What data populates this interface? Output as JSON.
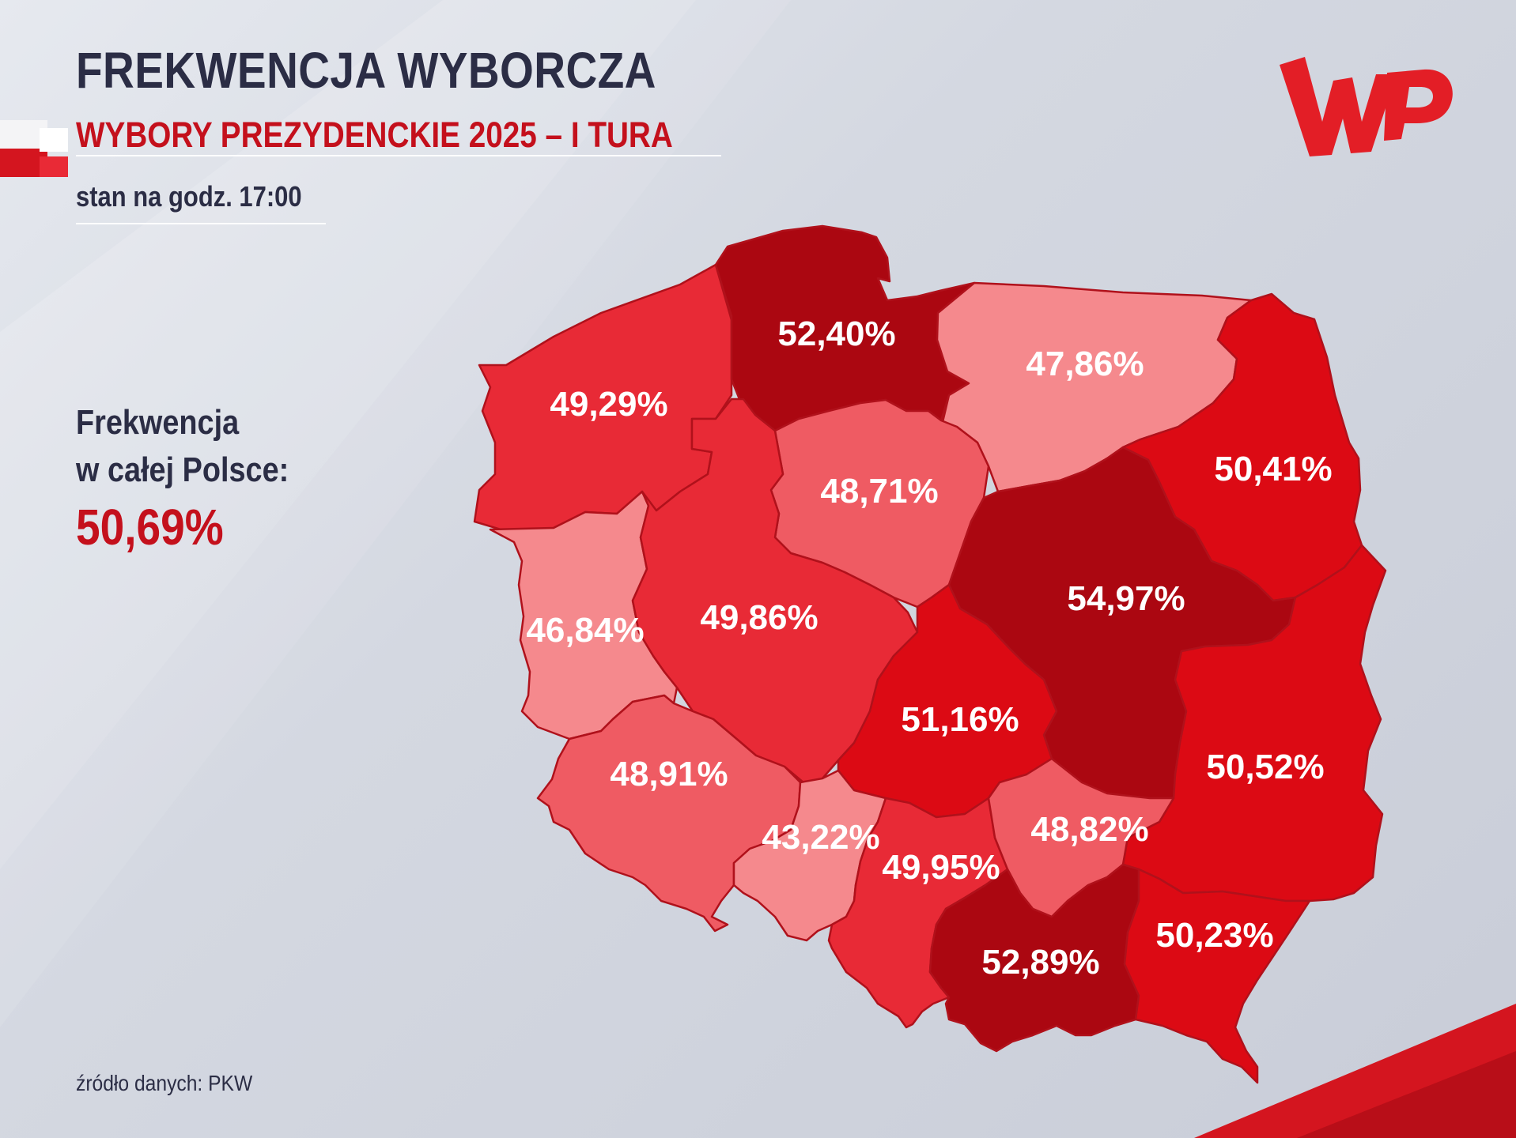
{
  "header": {
    "title": "FREKWENCJA WYBORCZA",
    "subtitle": "WYBORY PREZYDENCKIE 2025 – I TURA",
    "timestamp": "stan na godz. 17:00"
  },
  "national": {
    "label_line1": "Frekwencja",
    "label_line2": "w całej Polsce:",
    "value": "50,69%"
  },
  "source": "źródło danych: PKW",
  "logo": {
    "name": "wp-logo",
    "color": "#e31e26"
  },
  "colors": {
    "title": "#2b2d45",
    "accent": "#c4101c",
    "region_stroke": "#b0111b"
  },
  "map": {
    "regions": [
      {
        "key": "zachodniopomorskie",
        "turnout": "49,29%",
        "fill": "#e82a36"
      },
      {
        "key": "pomorskie",
        "turnout": "52,40%",
        "fill": "#ab0711"
      },
      {
        "key": "warminsko-mazurskie",
        "turnout": "47,86%",
        "fill": "#f5898d"
      },
      {
        "key": "podlaskie",
        "turnout": "50,41%",
        "fill": "#dc0a14"
      },
      {
        "key": "kujawsko-pomorskie",
        "turnout": "48,71%",
        "fill": "#ef5b63"
      },
      {
        "key": "lubuskie",
        "turnout": "46,84%",
        "fill": "#f5898d"
      },
      {
        "key": "wielkopolskie",
        "turnout": "49,86%",
        "fill": "#e82a36"
      },
      {
        "key": "mazowieckie",
        "turnout": "54,97%",
        "fill": "#ab0711"
      },
      {
        "key": "lodzkie",
        "turnout": "51,16%",
        "fill": "#dc0a14"
      },
      {
        "key": "dolnoslaskie",
        "turnout": "48,91%",
        "fill": "#ef5b63"
      },
      {
        "key": "lubelskie",
        "turnout": "50,52%",
        "fill": "#dc0a14"
      },
      {
        "key": "opolskie",
        "turnout": "43,22%",
        "fill": "#f5898d"
      },
      {
        "key": "slaskie",
        "turnout": "49,95%",
        "fill": "#e82a36"
      },
      {
        "key": "swietokrzyskie",
        "turnout": "48,82%",
        "fill": "#ef5b63"
      },
      {
        "key": "malopolskie",
        "turnout": "52,89%",
        "fill": "#ab0711"
      },
      {
        "key": "podkarpackie",
        "turnout": "50,23%",
        "fill": "#dc0a14"
      }
    ]
  }
}
